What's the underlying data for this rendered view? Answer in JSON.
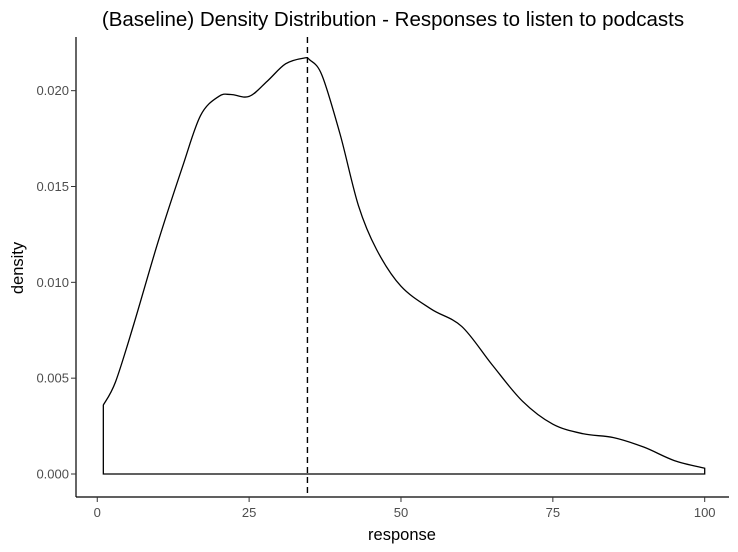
{
  "chart_data": {
    "type": "area",
    "title": "(Baseline) Density Distribution - Responses to listen to podcasts",
    "xlabel": "response",
    "ylabel": "density",
    "xlim": [
      -3.5,
      104
    ],
    "ylim": [
      -0.0012,
      0.0228
    ],
    "x_ticks": [
      0,
      25,
      50,
      75,
      100
    ],
    "y_ticks": [
      0.0,
      0.005,
      0.01,
      0.015,
      0.02
    ],
    "y_tick_labels": [
      "0.000",
      "0.005",
      "0.010",
      "0.015",
      "0.020"
    ],
    "grid": false,
    "legend": "none",
    "vline": {
      "x": 34.6,
      "style": "dashed"
    },
    "series": [
      {
        "x": [
          1,
          3,
          6,
          10,
          14,
          17,
          20,
          22,
          25,
          28,
          31,
          34,
          35,
          37,
          40,
          43,
          46,
          50,
          55,
          60,
          65,
          70,
          75,
          80,
          85,
          90,
          95,
          100
        ],
        "y": [
          0.0036,
          0.0048,
          0.0078,
          0.0121,
          0.016,
          0.0187,
          0.0197,
          0.0198,
          0.0197,
          0.0205,
          0.0214,
          0.0217,
          0.0216,
          0.0208,
          0.0177,
          0.014,
          0.0117,
          0.0098,
          0.0086,
          0.0077,
          0.0057,
          0.0038,
          0.0026,
          0.0021,
          0.0019,
          0.0014,
          0.0007,
          0.0003
        ]
      }
    ]
  }
}
